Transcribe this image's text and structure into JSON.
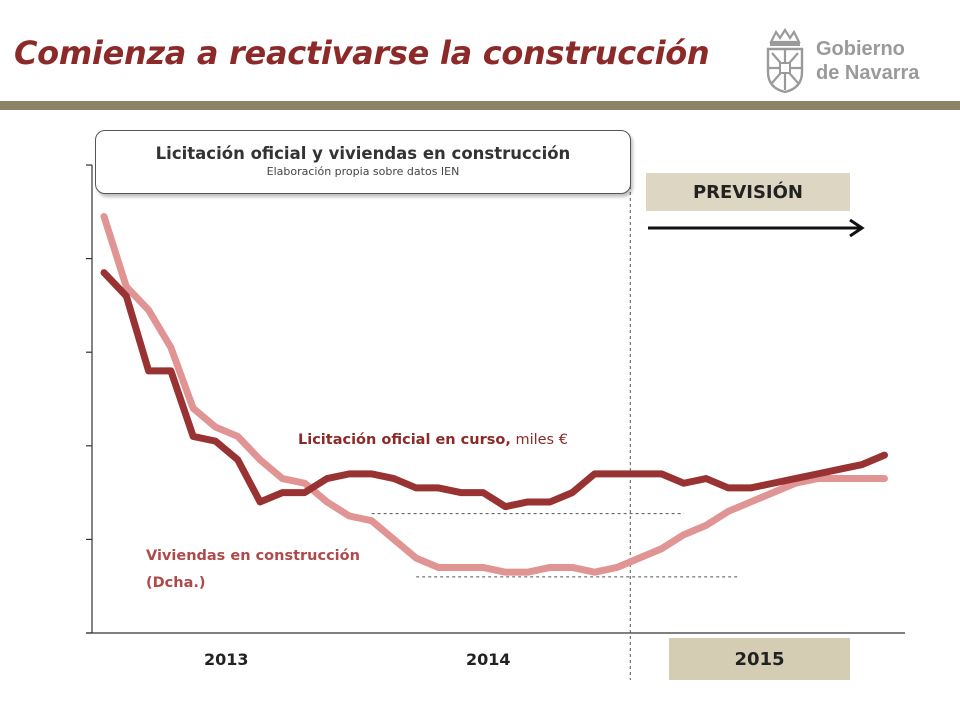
{
  "slide": {
    "title": "Comienza a reactivarse la construcción",
    "logo_line1": "Gobierno",
    "logo_line2": "de Navarra",
    "forecast_label": "PREVISIÓN",
    "year_2015": "2015"
  },
  "chart_data": {
    "type": "line",
    "title": "Licitación oficial y viviendas en construcción",
    "subtitle": "Elaboración propia sobre datos IEN",
    "x_tick_labels": [
      "2013",
      "2014"
    ],
    "y_axis": {
      "ticks_labeled": false,
      "range_index": [
        0,
        100
      ]
    },
    "grid": false,
    "series": [
      {
        "name": "Licitación oficial en curso,",
        "unit_label": "miles €",
        "axis": "left",
        "color": "#993333",
        "x": [
          0,
          1,
          2,
          3,
          4,
          5,
          6,
          7,
          8,
          9,
          10,
          11,
          12,
          13,
          14,
          15,
          16,
          17,
          18,
          19,
          20,
          21,
          22,
          23,
          24,
          25,
          26,
          27,
          28,
          29,
          30,
          31,
          32,
          33,
          34,
          35
        ],
        "values": [
          77,
          72,
          56,
          56,
          42,
          41,
          37,
          28,
          30,
          30,
          33,
          34,
          34,
          33,
          31,
          31,
          30,
          30,
          27,
          28,
          28,
          30,
          34,
          34,
          34,
          34,
          32,
          33,
          31,
          31,
          32,
          33,
          34,
          35,
          36,
          38
        ]
      },
      {
        "name": "Viviendas en construcción (Dcha.)",
        "axis": "right",
        "color": "#e09494",
        "x": [
          0,
          1,
          2,
          3,
          4,
          5,
          6,
          7,
          8,
          9,
          10,
          11,
          12,
          13,
          14,
          15,
          16,
          17,
          18,
          19,
          20,
          21,
          22,
          23,
          24,
          25,
          26,
          27,
          28,
          29,
          30,
          31,
          32,
          33,
          34,
          35
        ],
        "values": [
          89,
          74,
          69,
          61,
          48,
          44,
          42,
          37,
          33,
          32,
          28,
          25,
          24,
          20,
          16,
          14,
          14,
          14,
          13,
          13,
          14,
          14,
          13,
          14,
          16,
          18,
          21,
          23,
          26,
          28,
          30,
          32,
          33,
          33,
          33,
          33
        ]
      }
    ],
    "reference_lines": [
      {
        "type": "vertical",
        "at_x": 23.6,
        "label": "forecast-start"
      },
      {
        "type": "horizontal",
        "series": 0,
        "at_value": 25.5,
        "from_x": 12,
        "to_x": 26
      },
      {
        "type": "horizontal",
        "series": 1,
        "at_value": 12,
        "from_x": 14,
        "to_x": 28.5
      }
    ]
  }
}
